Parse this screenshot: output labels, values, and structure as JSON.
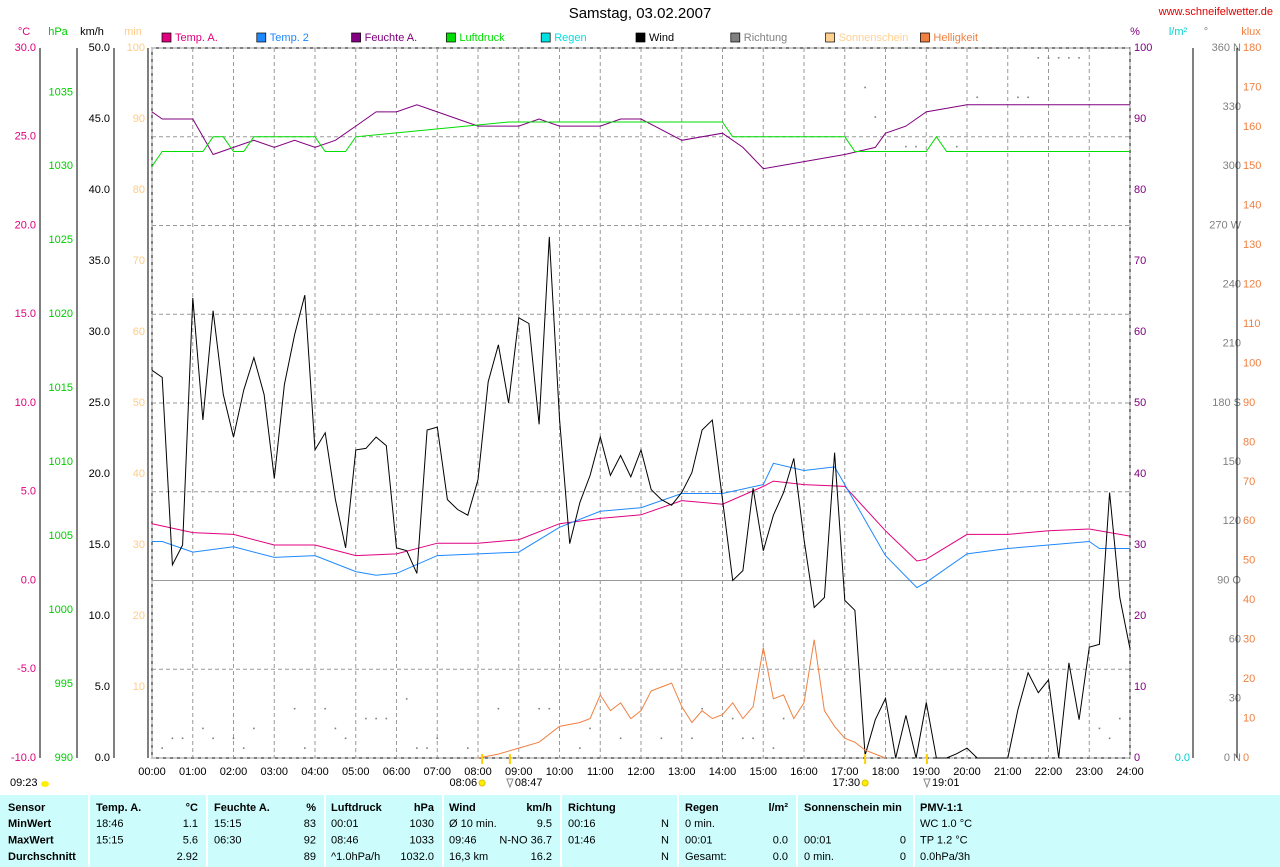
{
  "chart_data": {
    "type": "line",
    "title": "Samstag, 03.02.2007",
    "source": "www.schneifelwetter.de",
    "grid": true,
    "xlim": [
      0,
      24
    ],
    "xticks": [
      {
        "value": 0,
        "label": "00:00"
      },
      {
        "value": 1,
        "label": "01:00"
      },
      {
        "value": 2,
        "label": "02:00"
      },
      {
        "value": 3,
        "label": "03:00"
      },
      {
        "value": 4,
        "label": "04:00"
      },
      {
        "value": 5,
        "label": "05:00"
      },
      {
        "value": 6,
        "label": "06:00"
      },
      {
        "value": 7,
        "label": "07:00"
      },
      {
        "value": 8,
        "label": "08:00"
      },
      {
        "value": 9,
        "label": "09:00"
      },
      {
        "value": 10,
        "label": "10:00"
      },
      {
        "value": 11,
        "label": "11:00"
      },
      {
        "value": 12,
        "label": "12:00"
      },
      {
        "value": 13,
        "label": "13:00"
      },
      {
        "value": 14,
        "label": "14:00"
      },
      {
        "value": 15,
        "label": "15:00"
      },
      {
        "value": 16,
        "label": "16:00"
      },
      {
        "value": 17,
        "label": "17:00"
      },
      {
        "value": 18,
        "label": "18:00"
      },
      {
        "value": 19,
        "label": "19:00"
      },
      {
        "value": 20,
        "label": "20:00"
      },
      {
        "value": 21,
        "label": "21:00"
      },
      {
        "value": 22,
        "label": "22:00"
      },
      {
        "value": 23,
        "label": "23:00"
      },
      {
        "value": 24,
        "label": "24:00"
      }
    ],
    "axes": [
      {
        "unit": "°C",
        "color": "#e0007f",
        "lim": [
          -10,
          30
        ],
        "ticks": [
          {
            "value": -10,
            "label": "-10.0"
          },
          {
            "value": -5,
            "label": "-5.0"
          },
          {
            "value": 0,
            "label": "0.0"
          },
          {
            "value": 5,
            "label": "5.0"
          },
          {
            "value": 10,
            "label": "10.0"
          },
          {
            "value": 15,
            "label": "15.0"
          },
          {
            "value": 20,
            "label": "20.0"
          },
          {
            "value": 25,
            "label": "25.0"
          },
          {
            "value": 30,
            "label": "30.0"
          }
        ]
      },
      {
        "unit": "hPa",
        "color": "#00cc00",
        "lim": [
          990,
          1038
        ],
        "ticks": [
          990,
          995,
          1000,
          1005,
          1010,
          1015,
          1020,
          1025,
          1030,
          1035
        ]
      },
      {
        "unit": "km/h",
        "color": "#000000",
        "lim": [
          0,
          50
        ],
        "ticks": [
          {
            "value": 0,
            "label": "0.0"
          },
          {
            "value": 5,
            "label": "5.0"
          },
          {
            "value": 10,
            "label": "10.0"
          },
          {
            "value": 15,
            "label": "15.0"
          },
          {
            "value": 20,
            "label": "20.0"
          },
          {
            "value": 25,
            "label": "25.0"
          },
          {
            "value": 30,
            "label": "30.0"
          },
          {
            "value": 35,
            "label": "35.0"
          },
          {
            "value": 40,
            "label": "40.0"
          },
          {
            "value": 45,
            "label": "45.0"
          },
          {
            "value": 50,
            "label": "50.0"
          }
        ]
      },
      {
        "unit": "min",
        "color": "#ffcc88",
        "lim": [
          0,
          100
        ],
        "ticks": [
          10,
          20,
          30,
          40,
          50,
          60,
          70,
          80,
          90,
          100
        ]
      },
      {
        "unit": "%",
        "color": "#800080",
        "lim": [
          0,
          100
        ],
        "ticks": [
          0,
          10,
          20,
          30,
          40,
          50,
          60,
          70,
          80,
          90,
          100
        ]
      },
      {
        "unit": "l/m²",
        "color": "#00d0d0",
        "lim": [
          0,
          10
        ],
        "ticks": [
          {
            "value": 0,
            "label": "0.0"
          }
        ]
      },
      {
        "unit": "°",
        "color": "#808080",
        "lim": [
          0,
          360
        ],
        "ticks": [
          {
            "value": 0,
            "label": "0 N"
          },
          30,
          60,
          {
            "value": 90,
            "label": "90 O"
          },
          120,
          150,
          {
            "value": 180,
            "label": "180 S"
          },
          210,
          240,
          {
            "value": 270,
            "label": "270 W"
          },
          300,
          330,
          {
            "value": 360,
            "label": "360 N"
          }
        ]
      },
      {
        "unit": "klux",
        "color": "#f08040",
        "lim": [
          0,
          180
        ],
        "ticks": [
          0,
          10,
          20,
          30,
          40,
          50,
          60,
          70,
          80,
          90,
          100,
          110,
          120,
          130,
          140,
          150,
          160,
          170,
          180
        ]
      }
    ],
    "series": [
      {
        "name": "Temp. A.",
        "color": "#e0007f",
        "axis": "°C",
        "x": [
          0,
          1,
          2,
          3,
          4,
          5,
          6,
          7,
          8,
          9,
          10,
          11,
          12,
          13,
          14,
          15,
          15.25,
          16,
          17,
          18,
          18.77,
          19,
          20,
          21,
          22,
          23,
          24
        ],
        "values": [
          3.2,
          2.7,
          2.6,
          2.0,
          2.0,
          1.4,
          1.5,
          2.1,
          2.1,
          2.3,
          3.2,
          3.5,
          3.7,
          4.5,
          4.3,
          5.3,
          5.6,
          5.4,
          5.3,
          2.8,
          1.1,
          1.2,
          2.6,
          2.6,
          2.8,
          2.9,
          2.5
        ]
      },
      {
        "name": "Temp. 2",
        "color": "#1e88ff",
        "axis": "°C",
        "x": [
          0,
          0.25,
          1,
          2,
          3,
          4,
          5,
          5.5,
          6,
          7,
          8,
          9,
          10,
          11,
          12,
          13,
          14,
          15,
          15.25,
          16,
          16.75,
          17,
          17.5,
          18,
          18.77,
          19,
          20,
          21,
          22,
          23,
          23.25,
          24
        ],
        "values": [
          2.2,
          2.2,
          1.6,
          1.9,
          1.3,
          1.4,
          0.5,
          0.3,
          0.4,
          1.4,
          1.5,
          1.6,
          3.0,
          3.9,
          4.1,
          4.9,
          4.9,
          5.4,
          6.6,
          6.2,
          6.4,
          5.4,
          3.4,
          1.4,
          -0.4,
          -0.1,
          1.5,
          1.8,
          2.0,
          2.2,
          1.8,
          1.8
        ]
      },
      {
        "name": "Feuchte A.",
        "color": "#800080",
        "axis": "%",
        "x": [
          0,
          0.25,
          1,
          1.5,
          2,
          2.5,
          3,
          3.5,
          4,
          4.5,
          5,
          5.5,
          6,
          6.5,
          7,
          7.5,
          8,
          9,
          9.5,
          10,
          11,
          11.5,
          12,
          13,
          14,
          14.5,
          15,
          16,
          17,
          17.75,
          18,
          18.5,
          19,
          20,
          24
        ],
        "values": [
          91,
          90,
          90,
          85,
          86,
          87,
          86,
          87,
          86,
          87,
          89,
          91,
          91,
          92,
          91,
          90,
          89,
          89,
          90,
          89,
          89,
          90,
          90,
          87,
          88,
          86,
          83,
          84,
          85,
          86,
          88,
          89,
          91,
          92,
          92
        ]
      },
      {
        "name": "Luftdruck",
        "color": "#00dd00",
        "axis": "hPa",
        "x": [
          0,
          0.25,
          1.25,
          1.5,
          1.75,
          2,
          2.25,
          2.5,
          4,
          4.25,
          4.75,
          5,
          8.75,
          14,
          14.25,
          17,
          17.25,
          19,
          19.25,
          19.5,
          24
        ],
        "values": [
          1030,
          1031,
          1031,
          1032,
          1032,
          1031,
          1031,
          1032,
          1032,
          1031,
          1031,
          1032,
          1033,
          1033,
          1032,
          1032,
          1031,
          1031,
          1032,
          1031,
          1031
        ]
      },
      {
        "name": "Regen",
        "color": "#00e0e0",
        "axis": "l/m²",
        "x": [],
        "values": []
      },
      {
        "name": "Wind",
        "color": "#000000",
        "axis": "km/h",
        "x": [
          0,
          0.25,
          0.5,
          0.75,
          1,
          1.25,
          1.5,
          1.75,
          2,
          2.25,
          2.5,
          2.75,
          3,
          3.25,
          3.5,
          3.75,
          4,
          4.25,
          4.5,
          4.75,
          5,
          5.25,
          5.5,
          5.75,
          6,
          6.25,
          6.5,
          6.75,
          7,
          7.25,
          7.5,
          7.75,
          8,
          8.25,
          8.5,
          8.75,
          9,
          9.25,
          9.5,
          9.75,
          10,
          10.25,
          10.5,
          10.75,
          11,
          11.25,
          11.5,
          11.75,
          12,
          12.25,
          12.5,
          12.75,
          13,
          13.25,
          13.5,
          13.75,
          14,
          14.25,
          14.5,
          14.75,
          15,
          15.25,
          15.5,
          15.75,
          16,
          16.25,
          16.5,
          16.75,
          17,
          17.25,
          17.5,
          17.75,
          18,
          18.25,
          18.5,
          18.75,
          19,
          19.25,
          19.5,
          19.75,
          20,
          20.25,
          20.5,
          20.75,
          21,
          21.25,
          21.5,
          21.75,
          22,
          22.25,
          22.5,
          22.75,
          23,
          23.25,
          23.5,
          23.75,
          24
        ],
        "values": [
          27.3,
          26.8,
          13.6,
          15.0,
          32.4,
          23.8,
          31.5,
          25.6,
          22.6,
          25.9,
          28.2,
          25.6,
          19.7,
          26.3,
          29.8,
          32.6,
          21.7,
          22.9,
          18.2,
          14.8,
          21.7,
          21.8,
          22.6,
          22.0,
          14.8,
          14.6,
          13.0,
          23.1,
          23.3,
          18.2,
          17.5,
          17.1,
          19.6,
          26.5,
          29.1,
          25.0,
          31.0,
          30.6,
          23.5,
          36.7,
          23.9,
          15.1,
          18.0,
          19.9,
          22.6,
          19.9,
          21.3,
          19.8,
          21.7,
          18.9,
          18.2,
          17.8,
          18.7,
          20.1,
          23.1,
          23.8,
          18.2,
          12.5,
          13.2,
          19.0,
          14.6,
          17.1,
          18.7,
          21.1,
          15.4,
          10.6,
          11.3,
          21.5,
          11.1,
          10.4,
          0.2,
          2.7,
          4.2,
          0,
          3.0,
          0,
          3.9,
          0,
          0,
          0.3,
          0.7,
          0,
          0,
          0,
          0,
          3.4,
          6.0,
          4.6,
          5.5,
          0,
          6.7,
          2.7,
          7.8,
          8.0,
          18.7,
          11.3,
          7.7
        ]
      },
      {
        "name": "Richtung",
        "color": "#808080",
        "axis": "°",
        "style": "dots",
        "x": [
          0.25,
          0.5,
          0.75,
          1.25,
          1.5,
          2,
          2.25,
          2.5,
          3.5,
          3.75,
          4.25,
          4.5,
          4.75,
          5.25,
          5.5,
          5.75,
          6.25,
          6.5,
          6.75,
          7,
          7.75,
          8.5,
          9.5,
          9.75,
          10.5,
          10.75,
          11.5,
          12.5,
          13.25,
          13.5,
          14.25,
          14.5,
          14.75,
          15.25,
          15.5,
          17.5,
          17.75,
          18.5,
          18.75,
          19.75,
          20.25,
          21.25,
          21.5,
          21.75,
          22,
          22.25,
          22.5,
          22.75,
          23.25,
          23.5,
          23.75
        ],
        "values": [
          5,
          10,
          10,
          15,
          10,
          10,
          5,
          15,
          25,
          5,
          25,
          15,
          10,
          20,
          20,
          20,
          30,
          5,
          5,
          10,
          5,
          25,
          25,
          25,
          5,
          15,
          10,
          10,
          10,
          25,
          20,
          10,
          10,
          5,
          20,
          340,
          325,
          310,
          310,
          310,
          335,
          335,
          335,
          355,
          355,
          355,
          355,
          355,
          15,
          10,
          20
        ]
      },
      {
        "name": "Sonnenschein",
        "color": "#ffd090",
        "axis": "min",
        "x": [],
        "values": []
      },
      {
        "name": "Helligkeit",
        "color": "#f08040",
        "axis": "klux",
        "x": [
          8,
          8.5,
          9,
          9.5,
          10,
          10.5,
          10.75,
          11,
          11.25,
          11.5,
          11.75,
          12,
          12.25,
          12.5,
          12.75,
          13,
          13.25,
          13.5,
          13.75,
          14,
          14.25,
          14.5,
          14.75,
          15,
          15.25,
          15.5,
          15.75,
          16,
          16.25,
          16.5,
          16.75,
          17,
          17.25,
          17.5,
          17.75,
          18
        ],
        "values": [
          0,
          1,
          2.5,
          4,
          8,
          9,
          10,
          16,
          12,
          14,
          10,
          12,
          17,
          18,
          19,
          13,
          9,
          12,
          10,
          11,
          14,
          10,
          13,
          28,
          15,
          16,
          10,
          14,
          30,
          12,
          8,
          5,
          4,
          2,
          1,
          0
        ]
      }
    ],
    "annotations": [
      {
        "label": "08:06",
        "time": 8.1
      },
      {
        "label": "08:47",
        "time": 8.783
      },
      {
        "label": "17:30",
        "time": 17.5
      },
      {
        "label": "19:01",
        "time": 19.017
      }
    ],
    "corner_note": "09:23"
  },
  "stats_table": {
    "header": [
      "Sensor",
      "Temp. A.",
      "°C",
      "Feuchte A.",
      "%",
      "Luftdruck",
      "hPa",
      "Wind",
      "km/h",
      "Richtung",
      null,
      "Regen",
      "l/m²",
      "Sonnenschein min",
      null,
      "PMV-1:1"
    ],
    "rows": [
      [
        "MinWert",
        "18:46",
        "1.1",
        "15:15",
        "83",
        "00:01",
        "1030",
        "Ø 10 min.",
        "9.5",
        "00:16",
        "N",
        "0 min.",
        null,
        null,
        null,
        "WC 1.0 °C"
      ],
      [
        "MaxWert",
        "15:15",
        "5.6",
        "06:30",
        "92",
        "08:46",
        "1033",
        "09:46",
        "N-NO 36.7",
        "01:46",
        "N",
        "00:01",
        "0.0",
        "00:01",
        "0",
        "TP 1.2 °C"
      ],
      [
        "Durchschnitt",
        null,
        "2.92",
        null,
        "89",
        "^1.0hPa/h",
        "1032.0",
        "16,3 km",
        "16.2",
        null,
        "N",
        "Gesamt:",
        "0.0",
        "0 min.",
        "0",
        "0.0hPa/3h"
      ]
    ]
  }
}
